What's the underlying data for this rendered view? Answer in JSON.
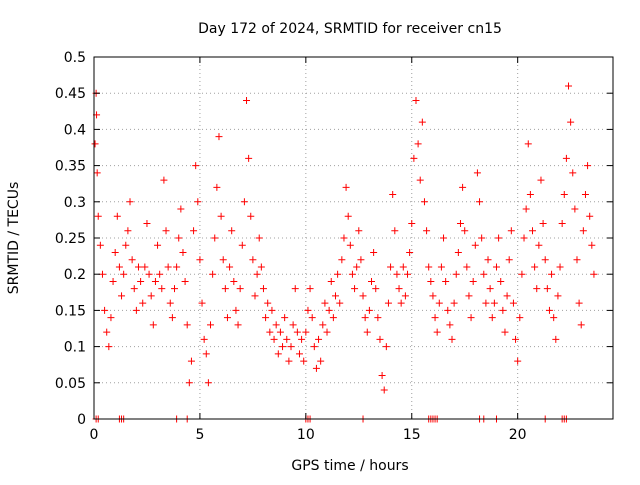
{
  "chart_data": {
    "type": "scatter",
    "title": "Day 172 of 2024, SRMTID for receiver cn15",
    "xlabel": "GPS time / hours",
    "ylabel": "SRMTID / TECUs",
    "xlim": [
      0,
      24.5
    ],
    "ylim": [
      0,
      0.5
    ],
    "x_ticks": [
      0,
      5,
      10,
      15,
      20
    ],
    "x_tick_labels": [
      "0",
      "5",
      "10",
      "15",
      "20"
    ],
    "y_ticks": [
      0,
      0.05,
      0.1,
      0.15,
      0.2,
      0.25,
      0.3,
      0.35,
      0.4,
      0.45,
      0.5
    ],
    "y_tick_labels": [
      "0",
      "0.05",
      "0.1",
      "0.15",
      "0.2",
      "0.25",
      "0.3",
      "0.35",
      "0.4",
      "0.45",
      "0.5"
    ],
    "grid": true,
    "marker": "+",
    "color": "#ff0000",
    "series": [
      {
        "name": "SRMTID",
        "points": [
          [
            0.05,
            0.38
          ],
          [
            0.1,
            0.45
          ],
          [
            0.12,
            0.42
          ],
          [
            0.15,
            0.34
          ],
          [
            0.2,
            0.28
          ],
          [
            0.3,
            0.24
          ],
          [
            0.4,
            0.2
          ],
          [
            0.5,
            0.15
          ],
          [
            0.6,
            0.12
          ],
          [
            0.7,
            0.1
          ],
          [
            0.8,
            0.14
          ],
          [
            0.9,
            0.19
          ],
          [
            1.0,
            0.23
          ],
          [
            1.1,
            0.28
          ],
          [
            1.2,
            0.21
          ],
          [
            1.3,
            0.17
          ],
          [
            1.4,
            0.2
          ],
          [
            1.5,
            0.24
          ],
          [
            1.6,
            0.26
          ],
          [
            1.7,
            0.3
          ],
          [
            1.8,
            0.22
          ],
          [
            1.9,
            0.18
          ],
          [
            2.0,
            0.15
          ],
          [
            2.1,
            0.21
          ],
          [
            2.2,
            0.19
          ],
          [
            2.3,
            0.16
          ],
          [
            2.4,
            0.21
          ],
          [
            2.5,
            0.27
          ],
          [
            2.6,
            0.2
          ],
          [
            2.7,
            0.17
          ],
          [
            2.8,
            0.13
          ],
          [
            2.9,
            0.19
          ],
          [
            3.0,
            0.24
          ],
          [
            3.1,
            0.2
          ],
          [
            3.2,
            0.18
          ],
          [
            3.3,
            0.33
          ],
          [
            3.4,
            0.26
          ],
          [
            3.5,
            0.21
          ],
          [
            3.6,
            0.16
          ],
          [
            3.7,
            0.14
          ],
          [
            3.8,
            0.18
          ],
          [
            3.9,
            0.21
          ],
          [
            4.0,
            0.25
          ],
          [
            4.1,
            0.29
          ],
          [
            4.2,
            0.23
          ],
          [
            4.3,
            0.19
          ],
          [
            4.4,
            0.13
          ],
          [
            4.5,
            0.05
          ],
          [
            4.6,
            0.08
          ],
          [
            4.7,
            0.26
          ],
          [
            4.8,
            0.35
          ],
          [
            4.9,
            0.3
          ],
          [
            5.0,
            0.22
          ],
          [
            5.1,
            0.16
          ],
          [
            5.2,
            0.11
          ],
          [
            5.3,
            0.09
          ],
          [
            5.4,
            0.05
          ],
          [
            5.5,
            0.13
          ],
          [
            5.6,
            0.2
          ],
          [
            5.7,
            0.25
          ],
          [
            5.8,
            0.32
          ],
          [
            5.9,
            0.39
          ],
          [
            6.0,
            0.28
          ],
          [
            6.1,
            0.22
          ],
          [
            6.2,
            0.18
          ],
          [
            6.3,
            0.14
          ],
          [
            6.4,
            0.21
          ],
          [
            6.5,
            0.26
          ],
          [
            6.6,
            0.19
          ],
          [
            6.7,
            0.15
          ],
          [
            6.8,
            0.13
          ],
          [
            6.9,
            0.18
          ],
          [
            7.0,
            0.24
          ],
          [
            7.1,
            0.3
          ],
          [
            7.2,
            0.44
          ],
          [
            7.3,
            0.36
          ],
          [
            7.4,
            0.28
          ],
          [
            7.5,
            0.22
          ],
          [
            7.6,
            0.17
          ],
          [
            7.7,
            0.2
          ],
          [
            7.8,
            0.25
          ],
          [
            7.9,
            0.21
          ],
          [
            8.0,
            0.18
          ],
          [
            8.1,
            0.14
          ],
          [
            8.2,
            0.16
          ],
          [
            8.3,
            0.12
          ],
          [
            8.4,
            0.15
          ],
          [
            8.5,
            0.11
          ],
          [
            8.6,
            0.13
          ],
          [
            8.7,
            0.09
          ],
          [
            8.8,
            0.12
          ],
          [
            8.9,
            0.1
          ],
          [
            9.0,
            0.14
          ],
          [
            9.1,
            0.11
          ],
          [
            9.2,
            0.08
          ],
          [
            9.3,
            0.1
          ],
          [
            9.4,
            0.13
          ],
          [
            9.5,
            0.18
          ],
          [
            9.6,
            0.12
          ],
          [
            9.7,
            0.09
          ],
          [
            9.8,
            0.11
          ],
          [
            9.9,
            0.08
          ],
          [
            10.0,
            0.12
          ],
          [
            10.1,
            0.15
          ],
          [
            10.2,
            0.18
          ],
          [
            10.3,
            0.14
          ],
          [
            10.4,
            0.1
          ],
          [
            10.5,
            0.07
          ],
          [
            10.6,
            0.11
          ],
          [
            10.7,
            0.08
          ],
          [
            10.8,
            0.13
          ],
          [
            10.9,
            0.16
          ],
          [
            11.0,
            0.12
          ],
          [
            11.1,
            0.15
          ],
          [
            11.2,
            0.19
          ],
          [
            11.3,
            0.14
          ],
          [
            11.4,
            0.17
          ],
          [
            11.5,
            0.2
          ],
          [
            11.6,
            0.16
          ],
          [
            11.7,
            0.22
          ],
          [
            11.8,
            0.25
          ],
          [
            11.9,
            0.32
          ],
          [
            12.0,
            0.28
          ],
          [
            12.1,
            0.24
          ],
          [
            12.2,
            0.2
          ],
          [
            12.3,
            0.18
          ],
          [
            12.4,
            0.21
          ],
          [
            12.5,
            0.26
          ],
          [
            12.6,
            0.22
          ],
          [
            12.7,
            0.17
          ],
          [
            12.8,
            0.14
          ],
          [
            12.9,
            0.12
          ],
          [
            13.0,
            0.15
          ],
          [
            13.1,
            0.19
          ],
          [
            13.2,
            0.23
          ],
          [
            13.3,
            0.18
          ],
          [
            13.4,
            0.14
          ],
          [
            13.5,
            0.11
          ],
          [
            13.6,
            0.06
          ],
          [
            13.7,
            0.04
          ],
          [
            13.8,
            0.1
          ],
          [
            13.9,
            0.16
          ],
          [
            14.0,
            0.21
          ],
          [
            14.1,
            0.31
          ],
          [
            14.2,
            0.26
          ],
          [
            14.3,
            0.2
          ],
          [
            14.4,
            0.18
          ],
          [
            14.5,
            0.16
          ],
          [
            14.6,
            0.21
          ],
          [
            14.7,
            0.17
          ],
          [
            14.8,
            0.2
          ],
          [
            14.9,
            0.23
          ],
          [
            15.0,
            0.27
          ],
          [
            15.1,
            0.36
          ],
          [
            15.2,
            0.44
          ],
          [
            15.3,
            0.38
          ],
          [
            15.4,
            0.33
          ],
          [
            15.5,
            0.41
          ],
          [
            15.6,
            0.3
          ],
          [
            15.7,
            0.26
          ],
          [
            15.8,
            0.21
          ],
          [
            15.9,
            0.19
          ],
          [
            16.0,
            0.17
          ],
          [
            16.1,
            0.14
          ],
          [
            16.2,
            0.12
          ],
          [
            16.3,
            0.16
          ],
          [
            16.4,
            0.21
          ],
          [
            16.5,
            0.25
          ],
          [
            16.6,
            0.19
          ],
          [
            16.7,
            0.15
          ],
          [
            16.8,
            0.13
          ],
          [
            16.9,
            0.11
          ],
          [
            17.0,
            0.16
          ],
          [
            17.1,
            0.2
          ],
          [
            17.2,
            0.23
          ],
          [
            17.3,
            0.27
          ],
          [
            17.4,
            0.32
          ],
          [
            17.5,
            0.26
          ],
          [
            17.6,
            0.21
          ],
          [
            17.7,
            0.17
          ],
          [
            17.8,
            0.14
          ],
          [
            17.9,
            0.19
          ],
          [
            18.0,
            0.24
          ],
          [
            18.1,
            0.34
          ],
          [
            18.2,
            0.3
          ],
          [
            18.3,
            0.25
          ],
          [
            18.4,
            0.2
          ],
          [
            18.5,
            0.16
          ],
          [
            18.6,
            0.22
          ],
          [
            18.7,
            0.18
          ],
          [
            18.8,
            0.14
          ],
          [
            18.9,
            0.16
          ],
          [
            19.0,
            0.21
          ],
          [
            19.1,
            0.25
          ],
          [
            19.2,
            0.19
          ],
          [
            19.3,
            0.15
          ],
          [
            19.4,
            0.12
          ],
          [
            19.5,
            0.17
          ],
          [
            19.6,
            0.22
          ],
          [
            19.7,
            0.26
          ],
          [
            19.8,
            0.16
          ],
          [
            19.9,
            0.11
          ],
          [
            20.0,
            0.08
          ],
          [
            20.1,
            0.14
          ],
          [
            20.2,
            0.2
          ],
          [
            20.3,
            0.25
          ],
          [
            20.4,
            0.29
          ],
          [
            20.5,
            0.38
          ],
          [
            20.6,
            0.31
          ],
          [
            20.7,
            0.26
          ],
          [
            20.8,
            0.21
          ],
          [
            20.9,
            0.18
          ],
          [
            21.0,
            0.24
          ],
          [
            21.1,
            0.33
          ],
          [
            21.2,
            0.27
          ],
          [
            21.3,
            0.22
          ],
          [
            21.4,
            0.18
          ],
          [
            21.5,
            0.15
          ],
          [
            21.6,
            0.2
          ],
          [
            21.7,
            0.14
          ],
          [
            21.8,
            0.11
          ],
          [
            21.9,
            0.17
          ],
          [
            22.0,
            0.21
          ],
          [
            22.1,
            0.27
          ],
          [
            22.2,
            0.31
          ],
          [
            22.3,
            0.36
          ],
          [
            22.4,
            0.46
          ],
          [
            22.5,
            0.41
          ],
          [
            22.6,
            0.34
          ],
          [
            22.7,
            0.29
          ],
          [
            22.8,
            0.22
          ],
          [
            22.9,
            0.16
          ],
          [
            23.0,
            0.13
          ],
          [
            23.1,
            0.26
          ],
          [
            23.2,
            0.31
          ],
          [
            23.3,
            0.35
          ],
          [
            23.4,
            0.28
          ],
          [
            23.5,
            0.24
          ],
          [
            23.6,
            0.2
          ],
          [
            0.1,
            0.0
          ],
          [
            0.2,
            0.0
          ],
          [
            1.2,
            0.0
          ],
          [
            1.3,
            0.0
          ],
          [
            1.4,
            0.0
          ],
          [
            3.9,
            0.0
          ],
          [
            4.4,
            0.0
          ],
          [
            10.0,
            0.0
          ],
          [
            10.1,
            0.0
          ],
          [
            10.2,
            0.0
          ],
          [
            12.7,
            0.0
          ],
          [
            15.8,
            0.0
          ],
          [
            15.9,
            0.0
          ],
          [
            16.0,
            0.0
          ],
          [
            16.1,
            0.0
          ],
          [
            16.2,
            0.0
          ],
          [
            18.2,
            0.0
          ],
          [
            18.4,
            0.0
          ],
          [
            19.0,
            0.0
          ],
          [
            21.3,
            0.0
          ],
          [
            22.1,
            0.0
          ],
          [
            22.2,
            0.0
          ],
          [
            22.3,
            0.0
          ]
        ]
      }
    ]
  }
}
